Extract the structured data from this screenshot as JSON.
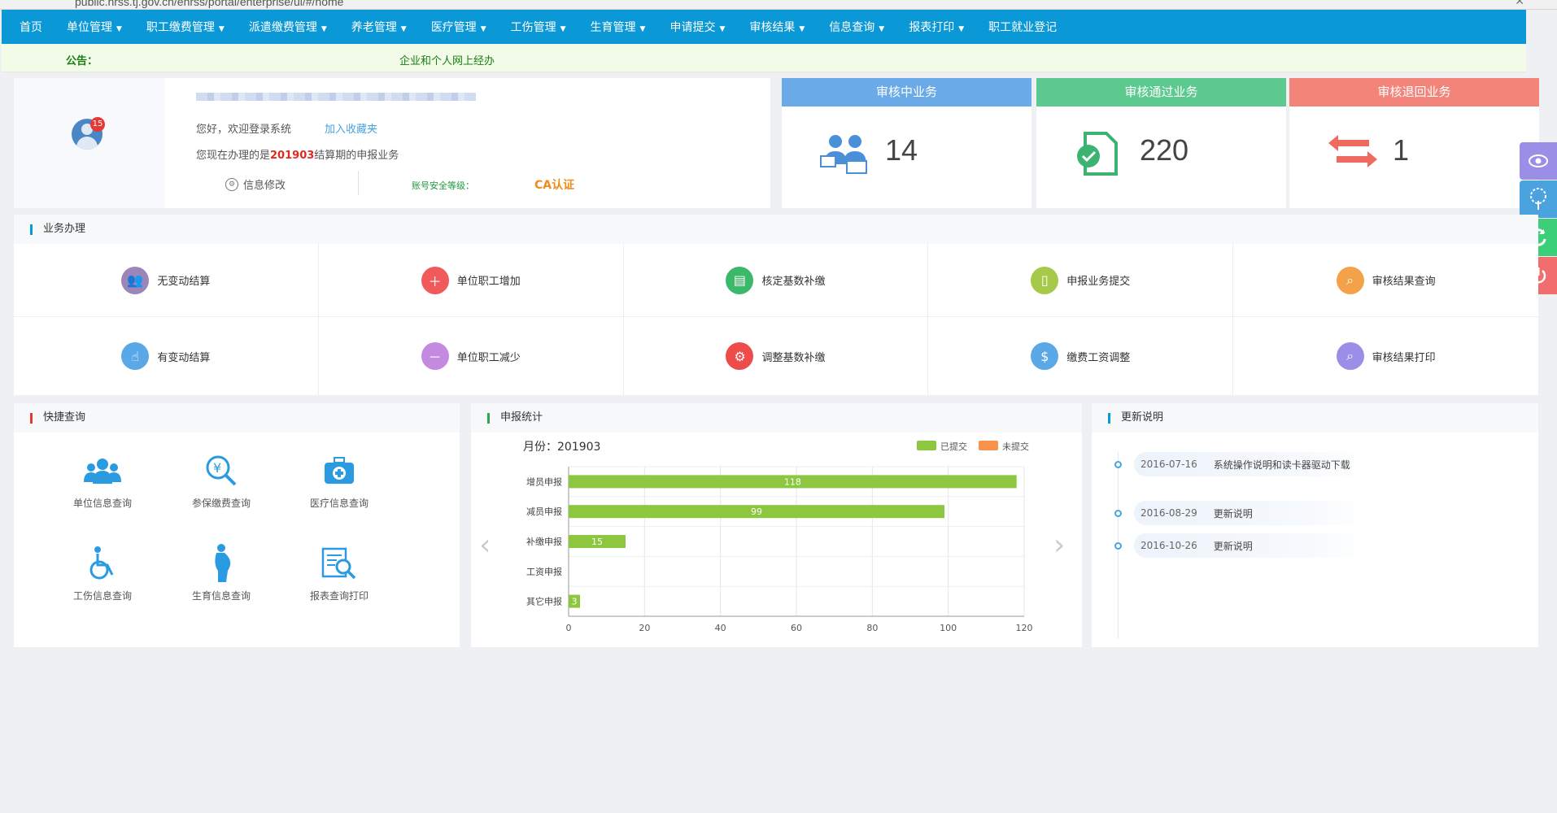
{
  "browser": {
    "url": "public.hrss.tj.gov.cn/ehrss/portal/enterprise/ui/#/home",
    "close": "✕"
  },
  "nav": {
    "items": [
      "首页",
      "单位管理",
      "职工缴费管理",
      "派遣缴费管理",
      "养老管理",
      "医疗管理",
      "工伤管理",
      "生育管理",
      "申请提交",
      "审核结果",
      "信息查询",
      "报表打印",
      "职工就业登记"
    ],
    "has_caret": [
      false,
      true,
      true,
      true,
      true,
      true,
      true,
      true,
      true,
      true,
      true,
      true,
      false
    ]
  },
  "notice": {
    "label": "公告：",
    "text": "企业和个人网上经办"
  },
  "user": {
    "badge": "15",
    "greeting": "您好，欢迎登录系统",
    "favorite": "加入收藏夹",
    "doing_prefix": "您现在办理的是",
    "period": "201903",
    "doing_suffix": "结算期的申报业务",
    "info_edit": "信息修改",
    "security_label": "账号安全等级：",
    "ca": "CA认证"
  },
  "status": [
    {
      "title": "审核中业务",
      "count": "14",
      "color": "#6aaae8",
      "icon": "users-icon"
    },
    {
      "title": "审核通过业务",
      "count": "220",
      "color": "#5cc98f",
      "icon": "approved-doc-icon"
    },
    {
      "title": "审核退回业务",
      "count": "1",
      "color": "#f2847a",
      "icon": "return-arrows-icon"
    }
  ],
  "floating": [
    {
      "icon": "eye-icon",
      "color": "#9b8ee6"
    },
    {
      "icon": "tree-icon",
      "color": "#4aa3df"
    },
    {
      "icon": "refresh-icon",
      "color": "#3ccf7a"
    },
    {
      "icon": "power-icon",
      "color": "#f26d6d"
    }
  ],
  "business": {
    "title": "业务办理",
    "items": [
      {
        "label": "无变动结算",
        "color": "#9a86b8",
        "icon": "user-group-icon"
      },
      {
        "label": "单位职工增加",
        "color": "#f05a5a",
        "icon": "user-add-icon"
      },
      {
        "label": "核定基数补缴",
        "color": "#3cb86a",
        "icon": "id-card-icon"
      },
      {
        "label": "申报业务提交",
        "color": "#a6c94a",
        "icon": "document-icon"
      },
      {
        "label": "审核结果查询",
        "color": "#f4a24a",
        "icon": "search-icon"
      },
      {
        "label": "有变动结算",
        "color": "#5aa9e6",
        "icon": "hand-pointer-icon"
      },
      {
        "label": "单位职工减少",
        "color": "#c48ae0",
        "icon": "user-remove-icon"
      },
      {
        "label": "调整基数补缴",
        "color": "#ee4b4b",
        "icon": "gear-icon"
      },
      {
        "label": "缴费工资调整",
        "color": "#5aa9e6",
        "icon": "salary-icon"
      },
      {
        "label": "审核结果打印",
        "color": "#9a8ee8",
        "icon": "print-search-icon"
      }
    ]
  },
  "quick": {
    "title": "快捷查询",
    "items": [
      {
        "label": "单位信息查询",
        "icon": "organization-icon"
      },
      {
        "label": "参保缴费查询",
        "icon": "yuan-search-icon"
      },
      {
        "label": "医疗信息查询",
        "icon": "medical-kit-icon"
      },
      {
        "label": "工伤信息查询",
        "icon": "wheelchair-icon"
      },
      {
        "label": "生育信息查询",
        "icon": "pregnant-icon"
      },
      {
        "label": "报表查询打印",
        "icon": "report-search-icon"
      }
    ]
  },
  "stats": {
    "title": "申报统计",
    "month_label": "月份：",
    "month": "201903"
  },
  "chart_data": {
    "type": "bar",
    "orientation": "horizontal",
    "categories": [
      "增员申报",
      "减员申报",
      "补缴申报",
      "工资申报",
      "其它申报"
    ],
    "series": [
      {
        "name": "已提交",
        "values": [
          118,
          99,
          15,
          0,
          3
        ],
        "color": "#8dc63f"
      },
      {
        "name": "未提交",
        "values": [
          0,
          0,
          0,
          0,
          0
        ],
        "color": "#f7934a"
      }
    ],
    "xlim": [
      0,
      120
    ],
    "xticks": [
      0,
      20,
      40,
      60,
      80,
      100,
      120
    ],
    "grid": true,
    "legend": "top-right"
  },
  "updates": {
    "title": "更新说明",
    "items": [
      {
        "date": "2016-07-16",
        "text": "系统操作说明和读卡器驱动下载"
      },
      {
        "date": "2016-08-29",
        "text": "更新说明"
      },
      {
        "date": "2016-10-26",
        "text": "更新说明"
      }
    ]
  }
}
